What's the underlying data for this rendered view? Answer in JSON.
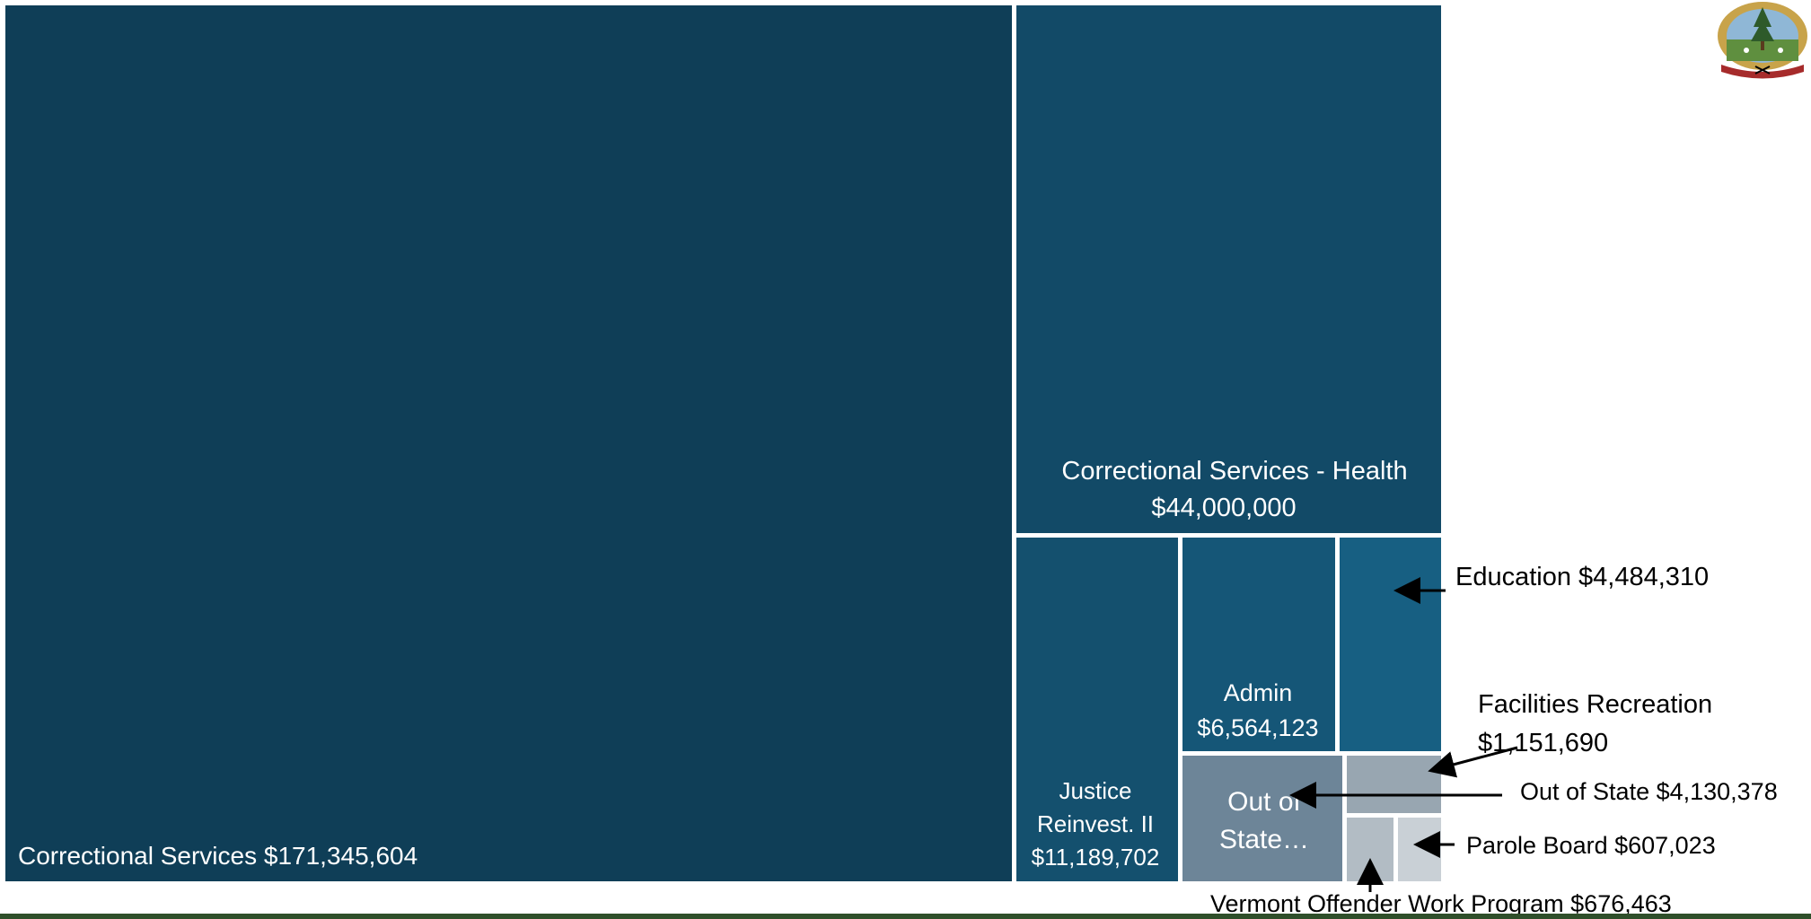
{
  "chart_data": {
    "type": "treemap",
    "title": "",
    "items": [
      {
        "label": "Correctional Services",
        "value_label": "$171,345,604",
        "value": 171345604,
        "color": "#0f3e57"
      },
      {
        "label": "Correctional Services - Health",
        "value_label": "$44,000,000",
        "value": 44000000,
        "color": "#124a67"
      },
      {
        "label": "Justice Reinvest. II",
        "value_label": "$11,189,702",
        "value": 11189702,
        "color": "#14506e"
      },
      {
        "label": "Admin",
        "value_label": "$6,564,123",
        "value": 6564123,
        "color": "#155677"
      },
      {
        "label": "Education",
        "value_label": "$4,484,310",
        "value": 4484310,
        "color": "#175f82"
      },
      {
        "label": "Out of State…",
        "value_label": "",
        "value": 4130378,
        "color": "#6d8598"
      },
      {
        "label": "Facilities Recreation",
        "value_label": "",
        "value": 1151690,
        "color": "#98a6b1"
      },
      {
        "label": "Vermont Offender Work Program",
        "value_label": "",
        "value": 676463,
        "color": "#b2bcc4"
      },
      {
        "label": "Parole Board",
        "value_label": "",
        "value": 607023,
        "color": "#c9d0d6"
      }
    ],
    "callouts": [
      {
        "text": "Education $4,484,310",
        "target": "Education"
      },
      {
        "text": "Facilities Recreation",
        "text2": "$1,151,690",
        "target": "Facilities Recreation"
      },
      {
        "text": "Out of State $4,130,378",
        "target": "Out of State…"
      },
      {
        "text": "Parole Board  $607,023",
        "target": "Parole Board"
      },
      {
        "text": "Vermont Offender Work Program  $676,463",
        "target": "Vermont Offender Work Program"
      }
    ]
  },
  "logo": {
    "name": "vermont-seal-logo",
    "text": "FREEDOM VERMONT UNITY"
  }
}
